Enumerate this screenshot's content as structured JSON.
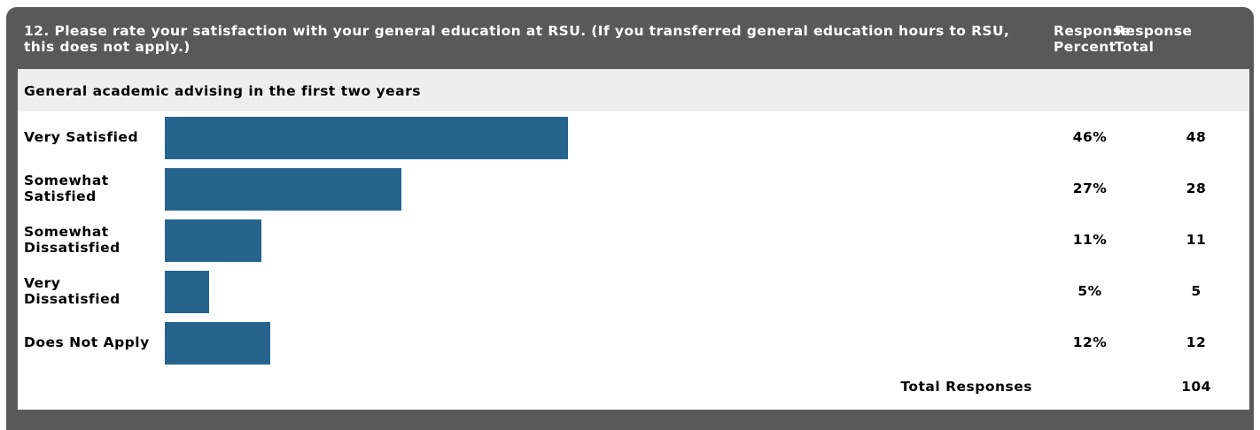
{
  "question": "12. Please rate your satisfaction with your general education at RSU. (If you transferred general education hours to RSU, this does not apply.)",
  "column_headers": {
    "percent": "Response Percent",
    "total": "Response Total"
  },
  "subquestion": "General academic advising in the first two years",
  "total_responses_label": "Total Responses",
  "total_responses_value": "104",
  "colors": {
    "card": "#595959",
    "bar": "#26648d",
    "subheader_bg": "#eeeeee"
  },
  "chart_data": {
    "type": "bar",
    "orientation": "horizontal",
    "categories": [
      "Very Satisfied",
      "Somewhat Satisfied",
      "Somewhat Dissatisfied",
      "Very Dissatisfied",
      "Does Not Apply"
    ],
    "values": [
      46,
      27,
      11,
      5,
      12
    ],
    "percent_labels": [
      "46%",
      "27%",
      "11%",
      "5%",
      "12%"
    ],
    "totals": [
      "48",
      "28",
      "11",
      "5",
      "12"
    ],
    "xlim": [
      0,
      100
    ]
  }
}
